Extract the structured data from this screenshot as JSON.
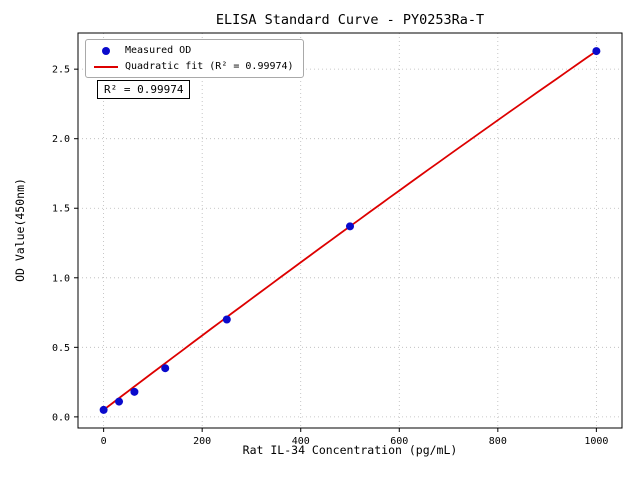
{
  "chart_data": {
    "type": "scatter",
    "title": "ELISA Standard Curve - PY0253Ra-T",
    "xlabel": "Rat IL-34 Concentration (pg/mL)",
    "ylabel": "OD Value(450nm)",
    "x_ticks": [
      0,
      200,
      400,
      600,
      800,
      1000
    ],
    "y_ticks": [
      0.0,
      0.5,
      1.0,
      1.5,
      2.0,
      2.5
    ],
    "xlim": [
      -52,
      1052
    ],
    "ylim": [
      -0.08,
      2.76
    ],
    "grid": true,
    "grid_color": "#b8b8b8",
    "legend_position": "upper-left",
    "series": [
      {
        "name": "Measured OD",
        "type": "scatter",
        "color": "#0a0acc",
        "x": [
          0,
          31.25,
          62.5,
          125,
          250,
          500,
          1000
        ],
        "y": [
          0.05,
          0.11,
          0.18,
          0.35,
          0.7,
          1.37,
          2.63
        ]
      },
      {
        "name": "Quadratic fit (R² = 0.99974)",
        "type": "line",
        "fit": "quadratic",
        "r_squared": 0.99974,
        "color": "#dd0000"
      }
    ],
    "annotation": {
      "text": "R² = 0.99974"
    }
  }
}
